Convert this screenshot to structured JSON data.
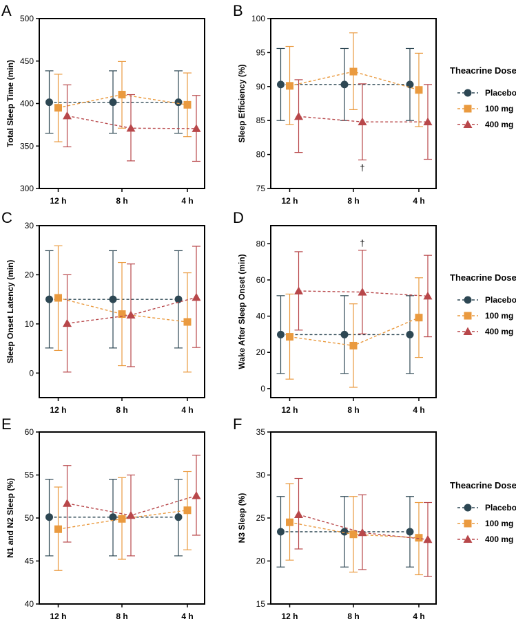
{
  "legend": {
    "title": "Theacrine Dose",
    "entries": [
      "Placebo",
      "100 mg",
      "400 mg"
    ]
  },
  "colors": {
    "Placebo": "#2d4753",
    "100 mg": "#ea9a3f",
    "400 mg": "#b8474a",
    "axis": "#000000"
  },
  "chart_data": [
    {
      "panel": "A",
      "type": "line",
      "ylabel": "Total Sleep Time (min)",
      "categories": [
        "12 h",
        "8 h",
        "4 h"
      ],
      "ylim": [
        300,
        500
      ],
      "yticks": [
        300,
        350,
        400,
        450,
        500
      ],
      "annotations": [],
      "series": [
        {
          "name": "Placebo",
          "values": [
            401.5,
            401.5,
            401.5
          ],
          "err_low": [
            365,
            365,
            365
          ],
          "err_high": [
            438.5,
            438.5,
            438.5
          ]
        },
        {
          "name": "100 mg",
          "values": [
            395,
            410.5,
            398.5
          ],
          "err_low": [
            355,
            371,
            361
          ],
          "err_high": [
            434.5,
            449.5,
            436
          ]
        },
        {
          "name": "400 mg",
          "values": [
            385.5,
            371,
            370.5
          ],
          "err_low": [
            349,
            332.5,
            332
          ],
          "err_high": [
            422,
            410.5,
            409.5
          ]
        }
      ]
    },
    {
      "panel": "B",
      "type": "line",
      "ylabel": "Sleep Efficiency (%)",
      "categories": [
        "12 h",
        "8 h",
        "4 h"
      ],
      "ylim": [
        75,
        100
      ],
      "yticks": [
        75,
        80,
        85,
        90,
        95,
        100
      ],
      "annotations": [
        {
          "text": "†",
          "category": "8 h",
          "series": "400 mg",
          "side": "below"
        }
      ],
      "series": [
        {
          "name": "Placebo",
          "values": [
            90.3,
            90.3,
            90.3
          ],
          "err_low": [
            85,
            85,
            85
          ],
          "err_high": [
            95.6,
            95.6,
            95.6
          ]
        },
        {
          "name": "100 mg",
          "values": [
            90.1,
            92.2,
            89.5
          ],
          "err_low": [
            84.4,
            86.6,
            84.1
          ],
          "err_high": [
            95.9,
            97.9,
            94.9
          ]
        },
        {
          "name": "400 mg",
          "values": [
            85.6,
            84.8,
            84.8
          ],
          "err_low": [
            80.3,
            79.2,
            79.3
          ],
          "err_high": [
            91.0,
            90.4,
            90.3
          ]
        }
      ]
    },
    {
      "panel": "C",
      "type": "line",
      "ylabel": "Sleep Onset Latency (min)",
      "categories": [
        "12 h",
        "8 h",
        "4 h"
      ],
      "ylim": [
        -5,
        30
      ],
      "yticks": [
        0,
        10,
        20,
        30
      ],
      "annotations": [],
      "series": [
        {
          "name": "Placebo",
          "values": [
            15,
            15,
            15
          ],
          "err_low": [
            5.1,
            5.1,
            5.1
          ],
          "err_high": [
            24.9,
            24.9,
            24.9
          ]
        },
        {
          "name": "100 mg",
          "values": [
            15.3,
            12,
            10.4
          ],
          "err_low": [
            4.6,
            1.5,
            0.2
          ],
          "err_high": [
            25.9,
            22.5,
            20.4
          ]
        },
        {
          "name": "400 mg",
          "values": [
            10.1,
            11.8,
            15.4
          ],
          "err_low": [
            0.2,
            1.3,
            5.2
          ],
          "err_high": [
            20.0,
            22.2,
            25.8
          ]
        }
      ]
    },
    {
      "panel": "D",
      "type": "line",
      "ylabel": "Wake After Sleep Onset (min)",
      "categories": [
        "12 h",
        "8 h",
        "4 h"
      ],
      "ylim": [
        -5,
        90
      ],
      "yticks": [
        0,
        20,
        40,
        60,
        80
      ],
      "annotations": [
        {
          "text": "†",
          "category": "8 h",
          "series": "400 mg",
          "side": "above"
        }
      ],
      "series": [
        {
          "name": "Placebo",
          "values": [
            29.8,
            29.8,
            29.8
          ],
          "err_low": [
            8.3,
            8.3,
            8.3
          ],
          "err_high": [
            51.3,
            51.3,
            51.3
          ]
        },
        {
          "name": "100 mg",
          "values": [
            28.6,
            23.7,
            39.2
          ],
          "err_low": [
            5.2,
            0.7,
            17.2
          ],
          "err_high": [
            52.2,
            46.8,
            61.2
          ]
        },
        {
          "name": "400 mg",
          "values": [
            53.9,
            53.3,
            51.1
          ],
          "err_low": [
            32.3,
            30.2,
            28.6
          ],
          "err_high": [
            75.6,
            76.4,
            73.6
          ]
        }
      ]
    },
    {
      "panel": "E",
      "type": "line",
      "ylabel": "N1 and N2 Sleep (%)",
      "categories": [
        "12 h",
        "8 h",
        "4 h"
      ],
      "ylim": [
        40,
        60
      ],
      "yticks": [
        40,
        45,
        50,
        55,
        60
      ],
      "annotations": [],
      "series": [
        {
          "name": "Placebo",
          "values": [
            50.1,
            50.1,
            50.1
          ],
          "err_low": [
            45.6,
            45.6,
            45.6
          ],
          "err_high": [
            54.5,
            54.5,
            54.5
          ]
        },
        {
          "name": "100 mg",
          "values": [
            48.7,
            49.9,
            50.9
          ],
          "err_low": [
            43.9,
            45.2,
            46.3
          ],
          "err_high": [
            53.6,
            54.7,
            55.4
          ]
        },
        {
          "name": "400 mg",
          "values": [
            51.7,
            50.3,
            52.6
          ],
          "err_low": [
            47.2,
            45.6,
            48.0
          ],
          "err_high": [
            56.1,
            55.0,
            57.3
          ]
        }
      ]
    },
    {
      "panel": "F",
      "type": "line",
      "ylabel": "N3 Sleep (%)",
      "categories": [
        "12 h",
        "8 h",
        "4 h"
      ],
      "ylim": [
        15,
        35
      ],
      "yticks": [
        15,
        20,
        25,
        30,
        35
      ],
      "annotations": [],
      "series": [
        {
          "name": "Placebo",
          "values": [
            23.4,
            23.4,
            23.4
          ],
          "err_low": [
            19.3,
            19.3,
            19.3
          ],
          "err_high": [
            27.5,
            27.5,
            27.5
          ]
        },
        {
          "name": "100 mg",
          "values": [
            24.5,
            23.1,
            22.7
          ],
          "err_low": [
            20.1,
            18.7,
            18.4
          ],
          "err_high": [
            29.0,
            27.5,
            26.8
          ]
        },
        {
          "name": "400 mg",
          "values": [
            25.4,
            23.3,
            22.5
          ],
          "err_low": [
            21.4,
            19.0,
            18.2
          ],
          "err_high": [
            29.6,
            27.7,
            26.8
          ]
        }
      ]
    }
  ]
}
